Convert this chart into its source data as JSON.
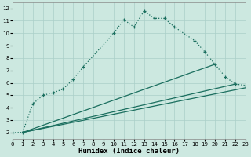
{
  "xlabel": "Humidex (Indice chaleur)",
  "bg_color": "#cce8e0",
  "grid_color": "#aacfc8",
  "line_color": "#1a6e5e",
  "xlim": [
    0,
    23
  ],
  "ylim": [
    1.5,
    12.5
  ],
  "xticks": [
    0,
    1,
    2,
    3,
    4,
    5,
    6,
    7,
    8,
    9,
    10,
    11,
    12,
    13,
    14,
    15,
    16,
    17,
    18,
    19,
    20,
    21,
    22,
    23
  ],
  "yticks": [
    2,
    3,
    4,
    5,
    6,
    7,
    8,
    9,
    10,
    11,
    12
  ],
  "dotted_curve": {
    "x": [
      0,
      1,
      2,
      3,
      4,
      5,
      6,
      7,
      10,
      11,
      12,
      13,
      14,
      15,
      16,
      18,
      19,
      20,
      21,
      22,
      23
    ],
    "y": [
      2,
      2,
      4.3,
      5.0,
      5.2,
      5.5,
      6.3,
      7.3,
      10.0,
      11.1,
      10.5,
      11.8,
      11.2,
      11.2,
      10.5,
      9.4,
      8.5,
      7.5,
      6.5,
      5.9,
      5.8
    ]
  },
  "straight_lines": [
    {
      "x": [
        1,
        20
      ],
      "y": [
        2,
        7.5
      ]
    },
    {
      "x": [
        1,
        22
      ],
      "y": [
        2,
        5.9
      ]
    },
    {
      "x": [
        1,
        23
      ],
      "y": [
        2,
        5.6
      ]
    }
  ]
}
